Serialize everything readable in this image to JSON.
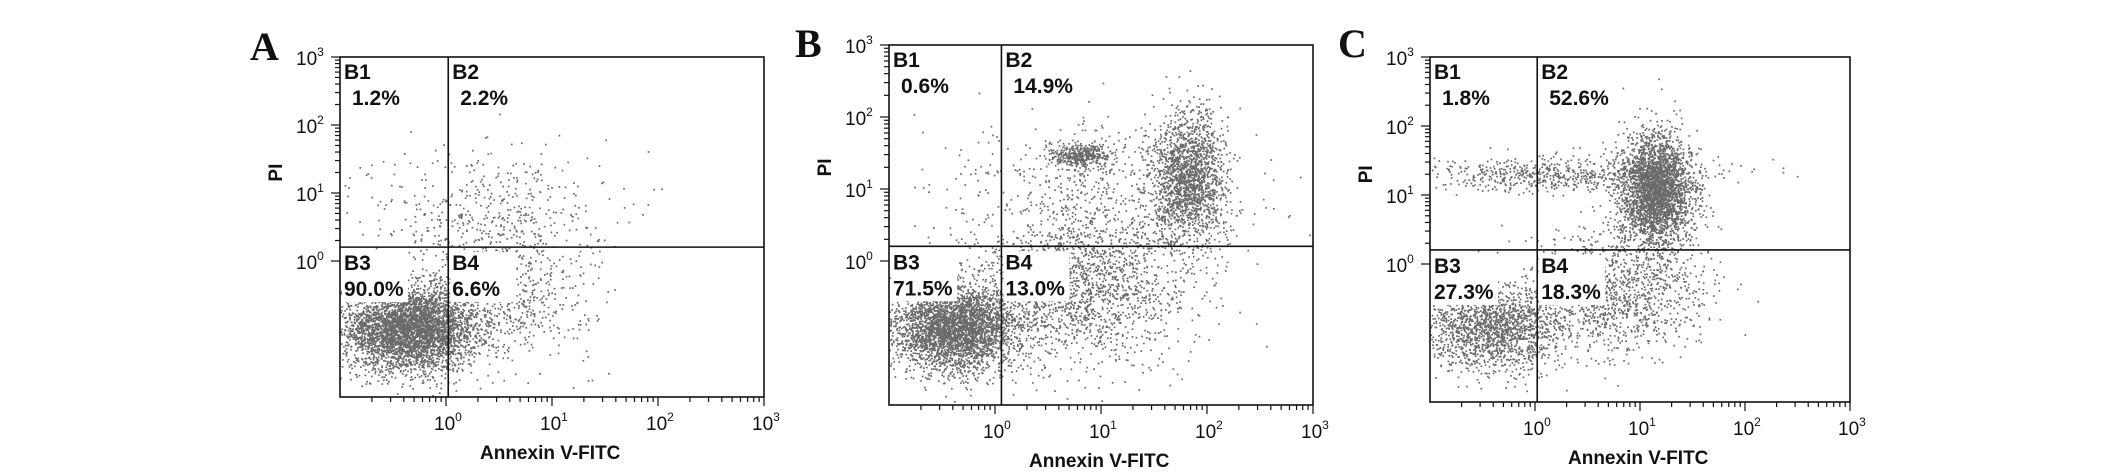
{
  "chart_data": [
    {
      "type": "scatter",
      "panel_label": "A",
      "xlabel": "Annexin V-FITC",
      "ylabel": "PI",
      "xscale": "log",
      "yscale": "log",
      "xlim": [
        0.1,
        1000
      ],
      "ylim": [
        0.01,
        1000
      ],
      "x_ticks": [
        {
          "base": "10",
          "exp": "0"
        },
        {
          "base": "10",
          "exp": "1"
        },
        {
          "base": "10",
          "exp": "2"
        },
        {
          "base": "10",
          "exp": "3"
        }
      ],
      "y_ticks": [
        {
          "base": "10",
          "exp": "0"
        },
        {
          "base": "10",
          "exp": "1"
        },
        {
          "base": "10",
          "exp": "2"
        },
        {
          "base": "10",
          "exp": "3"
        }
      ],
      "gate": {
        "x": 1.05,
        "y": 1.6
      },
      "quadrants": [
        {
          "id": "B1",
          "percent": "1.2%"
        },
        {
          "id": "B2",
          "percent": "2.2%"
        },
        {
          "id": "B3",
          "percent": "90.0%"
        },
        {
          "id": "B4",
          "percent": "6.6%"
        }
      ],
      "populations": [
        {
          "count": 4200,
          "cx": 0.45,
          "cy": 0.1,
          "sx": 0.32,
          "sy": 0.3
        },
        {
          "count": 650,
          "cx": 3.0,
          "cy": 0.3,
          "sx": 0.45,
          "sy": 0.45
        },
        {
          "count": 500,
          "cx": 2.5,
          "cy": 5.0,
          "sx": 0.55,
          "sy": 0.5
        }
      ]
    },
    {
      "type": "scatter",
      "panel_label": "B",
      "xlabel": "Annexin V-FITC",
      "ylabel": "PI",
      "xscale": "log",
      "yscale": "log",
      "xlim": [
        0.1,
        1000
      ],
      "ylim": [
        0.01,
        1000
      ],
      "x_ticks": [
        {
          "base": "10",
          "exp": "0"
        },
        {
          "base": "10",
          "exp": "1"
        },
        {
          "base": "10",
          "exp": "2"
        },
        {
          "base": "10",
          "exp": "3"
        }
      ],
      "y_ticks": [
        {
          "base": "10",
          "exp": "0"
        },
        {
          "base": "10",
          "exp": "1"
        },
        {
          "base": "10",
          "exp": "2"
        },
        {
          "base": "10",
          "exp": "3"
        }
      ],
      "gate": {
        "x": 1.15,
        "y": 1.6
      },
      "quadrants": [
        {
          "id": "B1",
          "percent": "0.6%"
        },
        {
          "id": "B2",
          "percent": "14.9%"
        },
        {
          "id": "B3",
          "percent": "71.5%"
        },
        {
          "id": "B4",
          "percent": "13.0%"
        }
      ],
      "populations": [
        {
          "count": 3400,
          "cx": 0.4,
          "cy": 0.12,
          "sx": 0.3,
          "sy": 0.3
        },
        {
          "count": 1800,
          "cx": 6.0,
          "cy": 0.4,
          "sx": 0.5,
          "sy": 0.5
        },
        {
          "count": 1800,
          "cx": 65,
          "cy": 15,
          "sx": 0.17,
          "sy": 0.45
        },
        {
          "count": 400,
          "cx": 6.5,
          "cy": 30,
          "sx": 0.15,
          "sy": 0.08
        },
        {
          "count": 650,
          "cx": 10,
          "cy": 8,
          "sx": 0.7,
          "sy": 0.55
        }
      ]
    },
    {
      "type": "scatter",
      "panel_label": "C",
      "xlabel": "Annexin V-FITC",
      "ylabel": "PI",
      "xscale": "log",
      "yscale": "log",
      "xlim": [
        0.1,
        1000
      ],
      "ylim": [
        0.01,
        1000
      ],
      "x_ticks": [
        {
          "base": "10",
          "exp": "0"
        },
        {
          "base": "10",
          "exp": "1"
        },
        {
          "base": "10",
          "exp": "2"
        },
        {
          "base": "10",
          "exp": "3"
        }
      ],
      "y_ticks": [
        {
          "base": "10",
          "exp": "0"
        },
        {
          "base": "10",
          "exp": "1"
        },
        {
          "base": "10",
          "exp": "2"
        },
        {
          "base": "10",
          "exp": "3"
        }
      ],
      "gate": {
        "x": 1.05,
        "y": 1.6
      },
      "quadrants": [
        {
          "id": "B1",
          "percent": "1.8%"
        },
        {
          "id": "B2",
          "percent": "52.6%"
        },
        {
          "id": "B3",
          "percent": "27.3%"
        },
        {
          "id": "B4",
          "percent": "18.3%"
        }
      ],
      "populations": [
        {
          "count": 1700,
          "cx": 0.4,
          "cy": 0.12,
          "sx": 0.33,
          "sy": 0.3
        },
        {
          "count": 3000,
          "cx": 14,
          "cy": 12,
          "sx": 0.17,
          "sy": 0.4
        },
        {
          "count": 1200,
          "cx": 6,
          "cy": 0.4,
          "sx": 0.42,
          "sy": 0.45
        },
        {
          "count": 650,
          "cx": 1.5,
          "cy": 20,
          "sx": 0.75,
          "sy": 0.12
        }
      ]
    }
  ]
}
